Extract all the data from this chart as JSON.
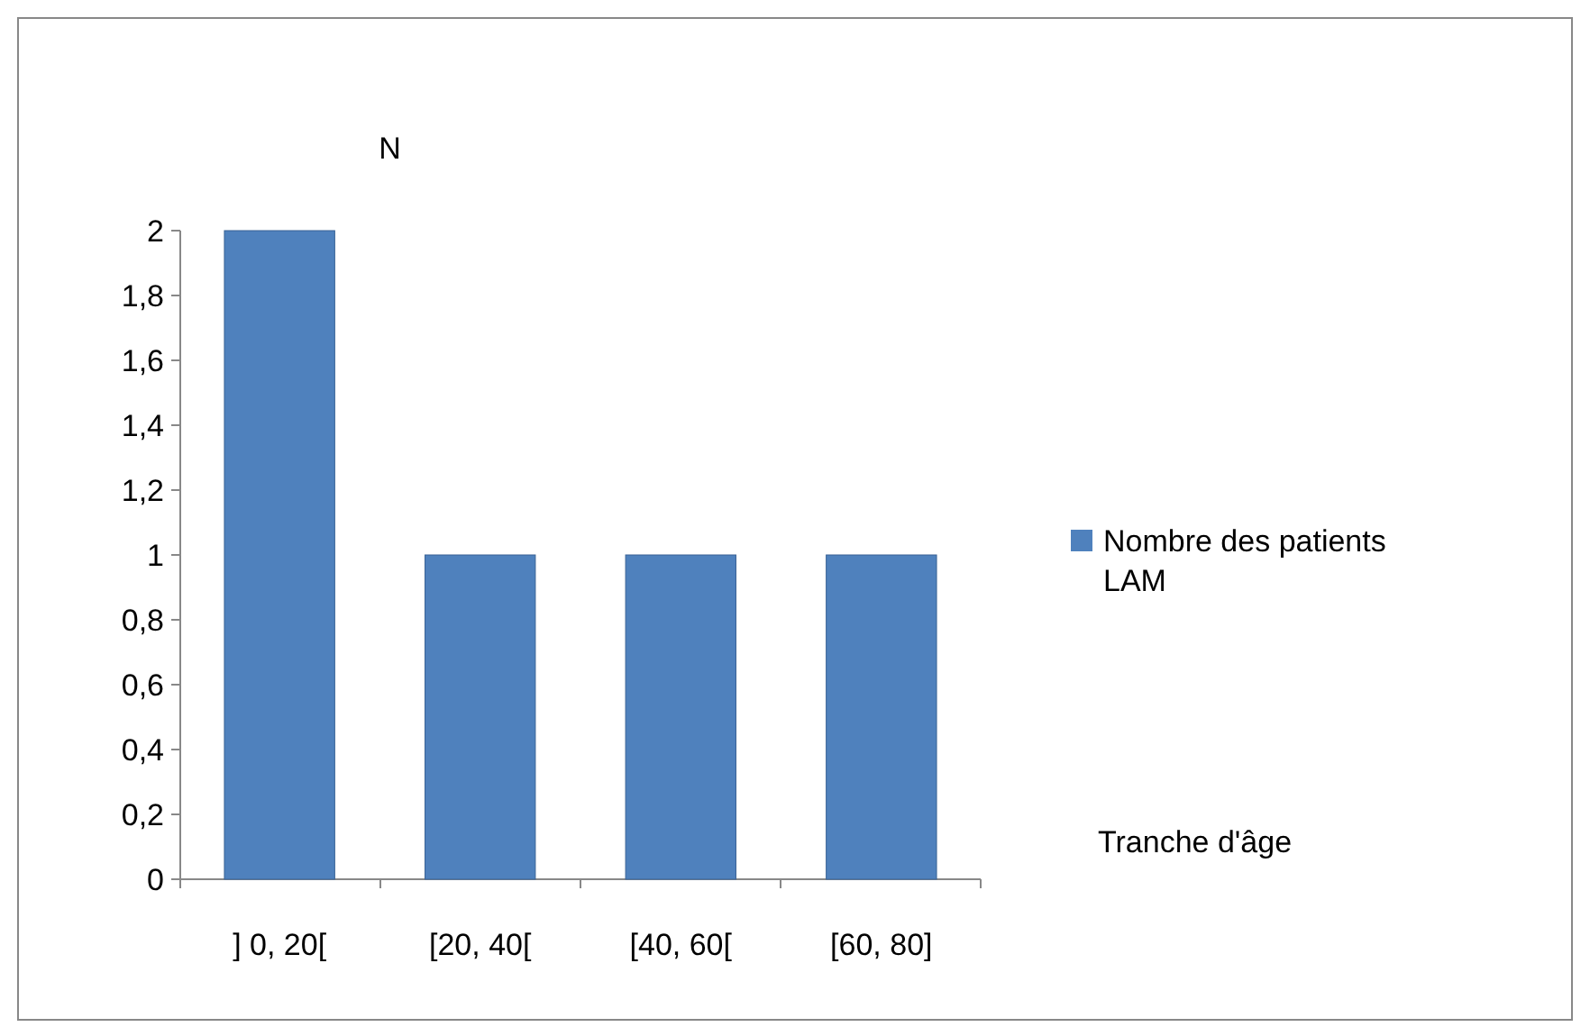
{
  "chart_data": {
    "type": "bar",
    "ylabel": "N",
    "xlabel": "Tranche d'âge",
    "categories": [
      "] 0, 20[",
      "[20, 40[",
      "[40, 60[",
      "[60, 80]"
    ],
    "series": [
      {
        "name": "Nombre des patients LAM",
        "color": "#4f81bd",
        "values": [
          2,
          1,
          1,
          1
        ]
      }
    ],
    "ylim": [
      0,
      2
    ],
    "yticks": [
      0,
      {
        "value": 0.2,
        "label": "0,2"
      },
      {
        "value": 0.4,
        "label": "0,4"
      },
      {
        "value": 0.6,
        "label": "0,6"
      },
      {
        "value": 0.8,
        "label": "0,8"
      },
      1,
      {
        "value": 1.2,
        "label": "1,2"
      },
      {
        "value": 1.4,
        "label": "1,4"
      },
      {
        "value": 1.6,
        "label": "1,6"
      },
      {
        "value": 1.8,
        "label": "1,8"
      },
      2
    ],
    "grid": false,
    "legend": "right"
  }
}
